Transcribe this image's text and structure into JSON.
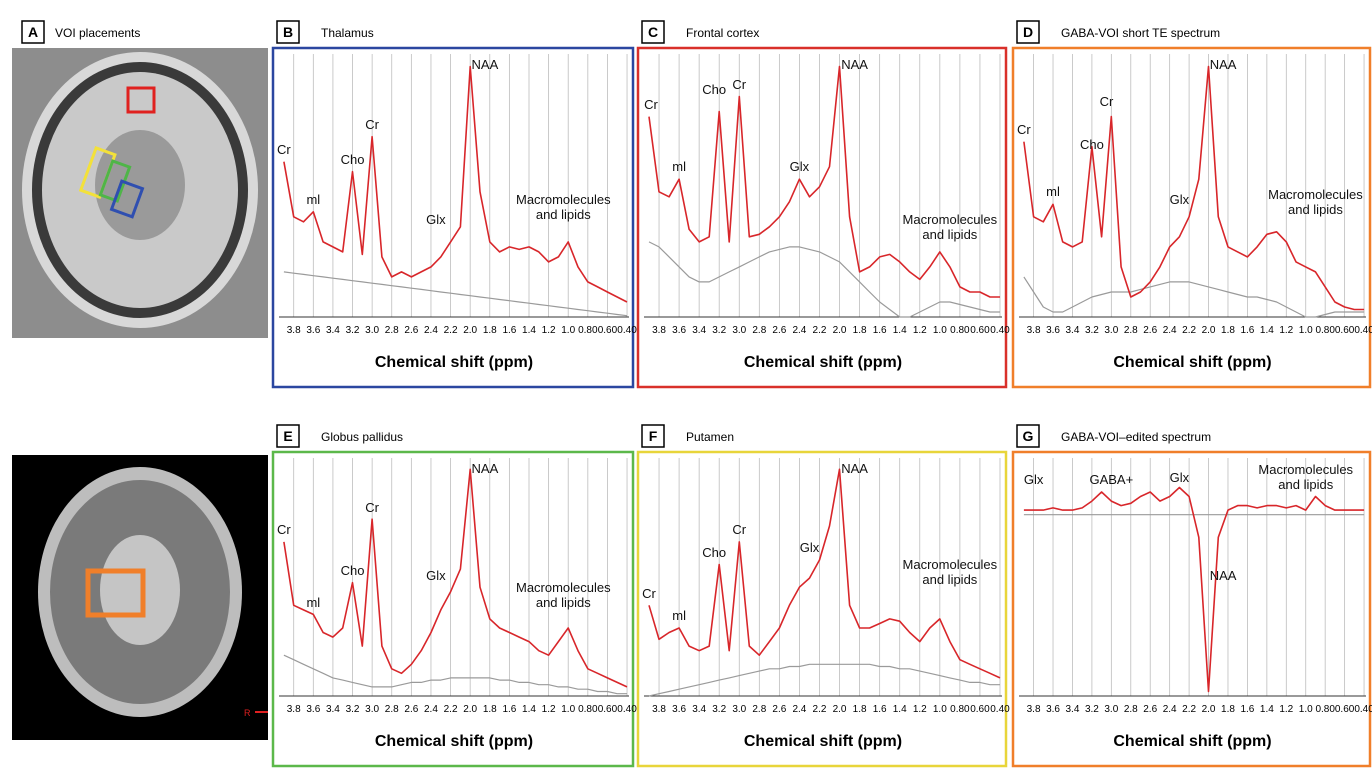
{
  "panel_a": {
    "label": "A",
    "title": "VOI placements",
    "marker": "R"
  },
  "chart_data": [
    {
      "type": "line",
      "panel": "B",
      "title": "Thalamus",
      "xlabel": "Chemical shift (ppm)",
      "frame_color": "#2b47a0",
      "x": [
        3.9,
        3.8,
        3.7,
        3.6,
        3.5,
        3.4,
        3.3,
        3.2,
        3.1,
        3.0,
        2.9,
        2.8,
        2.7,
        2.6,
        2.5,
        2.4,
        2.3,
        2.2,
        2.1,
        2.0,
        1.9,
        1.8,
        1.7,
        1.6,
        1.5,
        1.4,
        1.3,
        1.2,
        1.1,
        1.0,
        0.9,
        0.8,
        0.7,
        0.6,
        0.5,
        0.4
      ],
      "xlim": [
        3.95,
        0.38
      ],
      "ylim": [
        0,
        105
      ],
      "xticks": [
        3.8,
        3.6,
        3.4,
        3.2,
        {
          "value": 3,
          "label": "3.0"
        },
        2.8,
        2.6,
        2.4,
        2.2,
        {
          "value": 2,
          "label": "2.0"
        },
        1.8,
        1.6,
        1.4,
        1.2,
        {
          "value": 1,
          "label": "1.0"
        },
        {
          "value": 0.8,
          "label": "0.80"
        },
        {
          "value": 0.6,
          "label": "0.60"
        },
        {
          "value": 0.4,
          "label": "0.40"
        }
      ],
      "series": [
        {
          "color": "#d8262a",
          "values": [
            62,
            40,
            38,
            42,
            30,
            28,
            26,
            58,
            25,
            72,
            24,
            16,
            18,
            16,
            18,
            20,
            24,
            30,
            36,
            100,
            50,
            30,
            26,
            28,
            27,
            28,
            26,
            22,
            24,
            30,
            20,
            14,
            12,
            10,
            8,
            6
          ]
        },
        {
          "color": "#9a9a9a",
          "values": [
            18,
            17.5,
            17,
            16.5,
            16,
            15.5,
            15,
            14.5,
            14,
            13.5,
            13,
            12.5,
            12,
            11.5,
            11,
            10.5,
            10,
            9.5,
            9,
            8.5,
            8,
            7.5,
            7,
            6.5,
            6,
            5.5,
            5,
            4.5,
            4,
            3.5,
            3,
            2.5,
            2,
            1.5,
            1,
            0.5
          ]
        }
      ],
      "annotations": [
        {
          "text": "Cr",
          "x": 3.9,
          "y": 64
        },
        {
          "text": "ml",
          "x": 3.6,
          "y": 44
        },
        {
          "text": "Cho",
          "x": 3.2,
          "y": 60
        },
        {
          "text": "Cr",
          "x": 3.0,
          "y": 74
        },
        {
          "text": "Glx",
          "x": 2.35,
          "y": 36
        },
        {
          "text": "NAA",
          "x": 1.85,
          "y": 98
        },
        {
          "text": "Macromolecules and lipids",
          "x": 1.05,
          "y": 38
        }
      ]
    },
    {
      "type": "line",
      "panel": "C",
      "title": "Frontal cortex",
      "xlabel": "Chemical shift (ppm)",
      "frame_color": "#d9302a",
      "x": [
        3.9,
        3.8,
        3.7,
        3.6,
        3.5,
        3.4,
        3.3,
        3.2,
        3.1,
        3.0,
        2.9,
        2.8,
        2.7,
        2.6,
        2.5,
        2.4,
        2.3,
        2.2,
        2.1,
        2.0,
        1.9,
        1.8,
        1.7,
        1.6,
        1.5,
        1.4,
        1.3,
        1.2,
        1.1,
        1.0,
        0.9,
        0.8,
        0.7,
        0.6,
        0.5,
        0.4
      ],
      "xlim": [
        3.95,
        0.38
      ],
      "ylim": [
        0,
        105
      ],
      "xticks": [
        3.8,
        3.6,
        3.4,
        3.2,
        {
          "value": 3,
          "label": "3.0"
        },
        2.8,
        2.6,
        2.4,
        2.2,
        {
          "value": 2,
          "label": "2.0"
        },
        1.8,
        1.6,
        1.4,
        1.2,
        {
          "value": 1,
          "label": "1.0"
        },
        {
          "value": 0.8,
          "label": "0.80"
        },
        {
          "value": 0.6,
          "label": "0.60"
        },
        {
          "value": 0.4,
          "label": "0.40"
        }
      ],
      "series": [
        {
          "color": "#d8262a",
          "values": [
            80,
            50,
            48,
            55,
            35,
            30,
            32,
            82,
            30,
            88,
            32,
            33,
            36,
            40,
            46,
            55,
            48,
            52,
            60,
            100,
            40,
            18,
            20,
            24,
            25,
            22,
            18,
            15,
            20,
            26,
            20,
            12,
            10,
            10,
            8,
            8
          ]
        },
        {
          "color": "#9a9a9a",
          "values": [
            30,
            28,
            24,
            20,
            16,
            14,
            14,
            16,
            18,
            20,
            22,
            24,
            26,
            27,
            28,
            28,
            27,
            26,
            24,
            22,
            18,
            14,
            10,
            6,
            3,
            0,
            0,
            2,
            4,
            6,
            6,
            5,
            4,
            3,
            2,
            2
          ]
        }
      ],
      "annotations": [
        {
          "text": "Cr",
          "x": 3.88,
          "y": 82
        },
        {
          "text": "ml",
          "x": 3.6,
          "y": 57
        },
        {
          "text": "Cho",
          "x": 3.25,
          "y": 88
        },
        {
          "text": "Cr",
          "x": 3.0,
          "y": 90
        },
        {
          "text": "Glx",
          "x": 2.4,
          "y": 57
        },
        {
          "text": "NAA",
          "x": 1.85,
          "y": 98
        },
        {
          "text": "Macromolecules and lipids",
          "x": 0.9,
          "y": 30
        }
      ]
    },
    {
      "type": "line",
      "panel": "D",
      "title": "GABA-VOI short TE spectrum",
      "xlabel": "Chemical shift (ppm)",
      "frame_color": "#f07f2a",
      "x": [
        3.9,
        3.8,
        3.7,
        3.6,
        3.5,
        3.4,
        3.3,
        3.2,
        3.1,
        3.0,
        2.9,
        2.8,
        2.7,
        2.6,
        2.5,
        2.4,
        2.3,
        2.2,
        2.1,
        2.0,
        1.9,
        1.8,
        1.7,
        1.6,
        1.5,
        1.4,
        1.3,
        1.2,
        1.1,
        1.0,
        0.9,
        0.8,
        0.7,
        0.6,
        0.5,
        0.4
      ],
      "xlim": [
        3.95,
        0.38
      ],
      "ylim": [
        0,
        105
      ],
      "xticks": [
        3.8,
        3.6,
        3.4,
        3.2,
        {
          "value": 3,
          "label": "3.0"
        },
        2.8,
        2.6,
        2.4,
        2.2,
        {
          "value": 2,
          "label": "2.0"
        },
        1.8,
        1.6,
        1.4,
        1.2,
        {
          "value": 1,
          "label": "1.0"
        },
        {
          "value": 0.8,
          "label": "0.80"
        },
        {
          "value": 0.6,
          "label": "0.60"
        },
        {
          "value": 0.4,
          "label": "0.40"
        }
      ],
      "series": [
        {
          "color": "#d8262a",
          "values": [
            70,
            40,
            38,
            45,
            30,
            28,
            30,
            68,
            32,
            80,
            20,
            8,
            10,
            14,
            20,
            28,
            32,
            40,
            55,
            100,
            40,
            28,
            26,
            24,
            28,
            33,
            34,
            30,
            22,
            20,
            18,
            12,
            6,
            4,
            3,
            3
          ]
        },
        {
          "color": "#9a9a9a",
          "values": [
            16,
            10,
            4,
            2,
            2,
            4,
            6,
            8,
            9,
            10,
            10,
            10,
            11,
            12,
            13,
            14,
            14,
            14,
            13,
            12,
            11,
            10,
            9,
            8,
            8,
            7,
            6,
            4,
            2,
            0,
            0,
            1,
            2,
            2,
            2,
            2
          ]
        }
      ],
      "annotations": [
        {
          "text": "Cr",
          "x": 3.9,
          "y": 72
        },
        {
          "text": "ml",
          "x": 3.6,
          "y": 47
        },
        {
          "text": "Cho",
          "x": 3.2,
          "y": 66
        },
        {
          "text": "Cr",
          "x": 3.05,
          "y": 83
        },
        {
          "text": "Glx",
          "x": 2.3,
          "y": 44
        },
        {
          "text": "NAA",
          "x": 1.85,
          "y": 98
        },
        {
          "text": "Macromolecules and lipids",
          "x": 0.9,
          "y": 40
        }
      ]
    },
    {
      "type": "line",
      "panel": "E",
      "title": "Globus pallidus",
      "xlabel": "Chemical shift (ppm)",
      "frame_color": "#5cb84a",
      "x": [
        3.9,
        3.8,
        3.7,
        3.6,
        3.5,
        3.4,
        3.3,
        3.2,
        3.1,
        3.0,
        2.9,
        2.8,
        2.7,
        2.6,
        2.5,
        2.4,
        2.3,
        2.2,
        2.1,
        2.0,
        1.9,
        1.8,
        1.7,
        1.6,
        1.5,
        1.4,
        1.3,
        1.2,
        1.1,
        1.0,
        0.9,
        0.8,
        0.7,
        0.6,
        0.5,
        0.4
      ],
      "xlim": [
        3.95,
        0.38
      ],
      "ylim": [
        0,
        105
      ],
      "xticks": [
        3.8,
        3.6,
        3.4,
        3.2,
        {
          "value": 3,
          "label": "3.0"
        },
        2.8,
        2.6,
        2.4,
        2.2,
        {
          "value": 2,
          "label": "2.0"
        },
        1.8,
        1.6,
        1.4,
        1.2,
        {
          "value": 1,
          "label": "1.0"
        },
        {
          "value": 0.8,
          "label": "0.80"
        },
        {
          "value": 0.6,
          "label": "0.60"
        },
        {
          "value": 0.4,
          "label": "0.40"
        }
      ],
      "series": [
        {
          "color": "#d8262a",
          "values": [
            68,
            40,
            38,
            36,
            28,
            26,
            30,
            50,
            22,
            78,
            22,
            12,
            10,
            14,
            20,
            28,
            38,
            46,
            56,
            100,
            48,
            34,
            30,
            28,
            26,
            24,
            20,
            18,
            24,
            30,
            20,
            12,
            10,
            8,
            6,
            4
          ]
        },
        {
          "color": "#9a9a9a",
          "values": [
            18,
            16,
            14,
            12,
            10,
            8,
            7,
            6,
            5,
            4,
            4,
            4,
            5,
            6,
            6,
            7,
            7,
            8,
            8,
            8,
            8,
            8,
            7,
            7,
            6,
            6,
            5,
            5,
            4,
            4,
            3,
            3,
            2,
            2,
            1,
            1
          ]
        }
      ],
      "annotations": [
        {
          "text": "Cr",
          "x": 3.9,
          "y": 70
        },
        {
          "text": "ml",
          "x": 3.6,
          "y": 38
        },
        {
          "text": "Cho",
          "x": 3.2,
          "y": 52
        },
        {
          "text": "Cr",
          "x": 3.0,
          "y": 80
        },
        {
          "text": "Glx",
          "x": 2.35,
          "y": 50
        },
        {
          "text": "NAA",
          "x": 1.85,
          "y": 97
        },
        {
          "text": "Macromolecules and lipids",
          "x": 1.05,
          "y": 38
        }
      ]
    },
    {
      "type": "line",
      "panel": "F",
      "title": "Putamen",
      "xlabel": "Chemical shift (ppm)",
      "frame_color": "#e8d53a",
      "x": [
        3.9,
        3.8,
        3.7,
        3.6,
        3.5,
        3.4,
        3.3,
        3.2,
        3.1,
        3.0,
        2.9,
        2.8,
        2.7,
        2.6,
        2.5,
        2.4,
        2.3,
        2.2,
        2.1,
        2.0,
        1.9,
        1.8,
        1.7,
        1.6,
        1.5,
        1.4,
        1.3,
        1.2,
        1.1,
        1.0,
        0.9,
        0.8,
        0.7,
        0.6,
        0.5,
        0.4
      ],
      "xlim": [
        3.95,
        0.38
      ],
      "ylim": [
        0,
        105
      ],
      "xticks": [
        3.8,
        3.6,
        3.4,
        3.2,
        {
          "value": 3,
          "label": "3.0"
        },
        2.8,
        2.6,
        2.4,
        2.2,
        {
          "value": 2,
          "label": "2.0"
        },
        1.8,
        1.6,
        1.4,
        1.2,
        {
          "value": 1,
          "label": "1.0"
        },
        {
          "value": 0.8,
          "label": "0.80"
        },
        {
          "value": 0.6,
          "label": "0.60"
        },
        {
          "value": 0.4,
          "label": "0.40"
        }
      ],
      "series": [
        {
          "color": "#d8262a",
          "values": [
            40,
            25,
            28,
            30,
            22,
            20,
            22,
            58,
            20,
            68,
            22,
            18,
            24,
            30,
            40,
            48,
            52,
            60,
            75,
            100,
            40,
            30,
            30,
            32,
            34,
            33,
            28,
            24,
            30,
            34,
            24,
            16,
            14,
            12,
            10,
            8
          ]
        },
        {
          "color": "#9a9a9a",
          "values": [
            0,
            1,
            2,
            3,
            4,
            5,
            6,
            7,
            8,
            9,
            10,
            11,
            12,
            12,
            13,
            13,
            14,
            14,
            14,
            14,
            14,
            14,
            14,
            13,
            13,
            12,
            12,
            11,
            10,
            9,
            8,
            7,
            6,
            6,
            5,
            5
          ]
        }
      ],
      "annotations": [
        {
          "text": "Cr",
          "x": 3.9,
          "y": 42
        },
        {
          "text": "ml",
          "x": 3.6,
          "y": 32
        },
        {
          "text": "Cho",
          "x": 3.25,
          "y": 60
        },
        {
          "text": "Cr",
          "x": 3.0,
          "y": 70
        },
        {
          "text": "Glx",
          "x": 2.3,
          "y": 62
        },
        {
          "text": "NAA",
          "x": 1.85,
          "y": 97
        },
        {
          "text": "Macromolecules and lipids",
          "x": 0.9,
          "y": 48
        }
      ]
    },
    {
      "type": "line",
      "panel": "G",
      "title": "GABA-VOI–edited spectrum",
      "xlabel": "Chemical shift (ppm)",
      "frame_color": "#f07f2a",
      "x": [
        3.9,
        3.8,
        3.7,
        3.6,
        3.5,
        3.4,
        3.3,
        3.2,
        3.1,
        3.0,
        2.9,
        2.8,
        2.7,
        2.6,
        2.5,
        2.4,
        2.3,
        2.2,
        2.1,
        2.0,
        1.9,
        1.8,
        1.7,
        1.6,
        1.5,
        1.4,
        1.3,
        1.2,
        1.1,
        1.0,
        0.9,
        0.8,
        0.7,
        0.6,
        0.5,
        0.4
      ],
      "xlim": [
        3.95,
        0.38
      ],
      "ylim": [
        0,
        105
      ],
      "xticks": [
        3.8,
        3.6,
        3.4,
        3.2,
        {
          "value": 3,
          "label": "3.0"
        },
        2.8,
        2.6,
        2.4,
        2.2,
        {
          "value": 2,
          "label": "2.0"
        },
        1.8,
        1.6,
        1.4,
        1.2,
        {
          "value": 1,
          "label": "1.0"
        },
        {
          "value": 0.8,
          "label": "0.80"
        },
        {
          "value": 0.6,
          "label": "0.60"
        },
        {
          "value": 0.4,
          "label": "0.40"
        }
      ],
      "series": [
        {
          "color": "#d8262a",
          "values": [
            82,
            82,
            82,
            83,
            82,
            82,
            83,
            86,
            90,
            86,
            84,
            85,
            88,
            90,
            86,
            88,
            92,
            88,
            70,
            2,
            70,
            82,
            84,
            84,
            83,
            84,
            84,
            83,
            84,
            82,
            88,
            84,
            82,
            82,
            82,
            82
          ]
        },
        {
          "color": "#9a9a9a",
          "values": [
            80,
            80,
            80,
            80,
            80,
            80,
            80,
            80,
            80,
            80,
            80,
            80,
            80,
            80,
            80,
            80,
            80,
            80,
            80,
            80,
            80,
            80,
            80,
            80,
            80,
            80,
            80,
            80,
            80,
            80,
            80,
            80,
            80,
            80,
            80,
            80
          ]
        }
      ],
      "annotations": [
        {
          "text": "Glx",
          "x": 3.8,
          "y": 92
        },
        {
          "text": "GABA+",
          "x": 3.0,
          "y": 92
        },
        {
          "text": "Glx",
          "x": 2.3,
          "y": 93
        },
        {
          "text": "Macromolecules and lipids",
          "x": 1.0,
          "y": 90
        },
        {
          "text": "NAA",
          "x": 1.85,
          "y": 50
        }
      ]
    }
  ]
}
